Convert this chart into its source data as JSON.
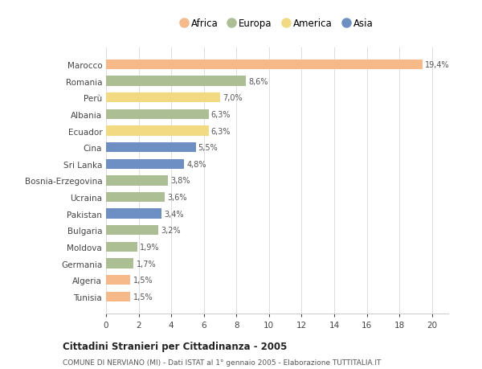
{
  "countries": [
    "Tunisia",
    "Algeria",
    "Germania",
    "Moldova",
    "Bulgaria",
    "Pakistan",
    "Ucraina",
    "Bosnia-Erzegovina",
    "Sri Lanka",
    "Cina",
    "Ecuador",
    "Albania",
    "Perù",
    "Romania",
    "Marocco"
  ],
  "values": [
    1.5,
    1.5,
    1.7,
    1.9,
    3.2,
    3.4,
    3.6,
    3.8,
    4.8,
    5.5,
    6.3,
    6.3,
    7.0,
    8.6,
    19.4
  ],
  "labels": [
    "1,5%",
    "1,5%",
    "1,7%",
    "1,9%",
    "3,2%",
    "3,4%",
    "3,6%",
    "3,8%",
    "4,8%",
    "5,5%",
    "6,3%",
    "6,3%",
    "7,0%",
    "8,6%",
    "19,4%"
  ],
  "continents": [
    "Africa",
    "Africa",
    "Europa",
    "Europa",
    "Europa",
    "Asia",
    "Europa",
    "Europa",
    "Asia",
    "Asia",
    "America",
    "Europa",
    "America",
    "Europa",
    "Africa"
  ],
  "colors": {
    "Africa": "#F5B98A",
    "Europa": "#ABBE94",
    "America": "#F2DA82",
    "Asia": "#6E8FC4"
  },
  "legend_order": [
    "Africa",
    "Europa",
    "America",
    "Asia"
  ],
  "xlim": [
    0,
    21
  ],
  "xticks": [
    0,
    2,
    4,
    6,
    8,
    10,
    12,
    14,
    16,
    18,
    20
  ],
  "title": "Cittadini Stranieri per Cittadinanza - 2005",
  "subtitle": "COMUNE DI NERVIANO (MI) - Dati ISTAT al 1° gennaio 2005 - Elaborazione TUTTITALIA.IT",
  "bg_color": "#ffffff",
  "bar_height": 0.6
}
